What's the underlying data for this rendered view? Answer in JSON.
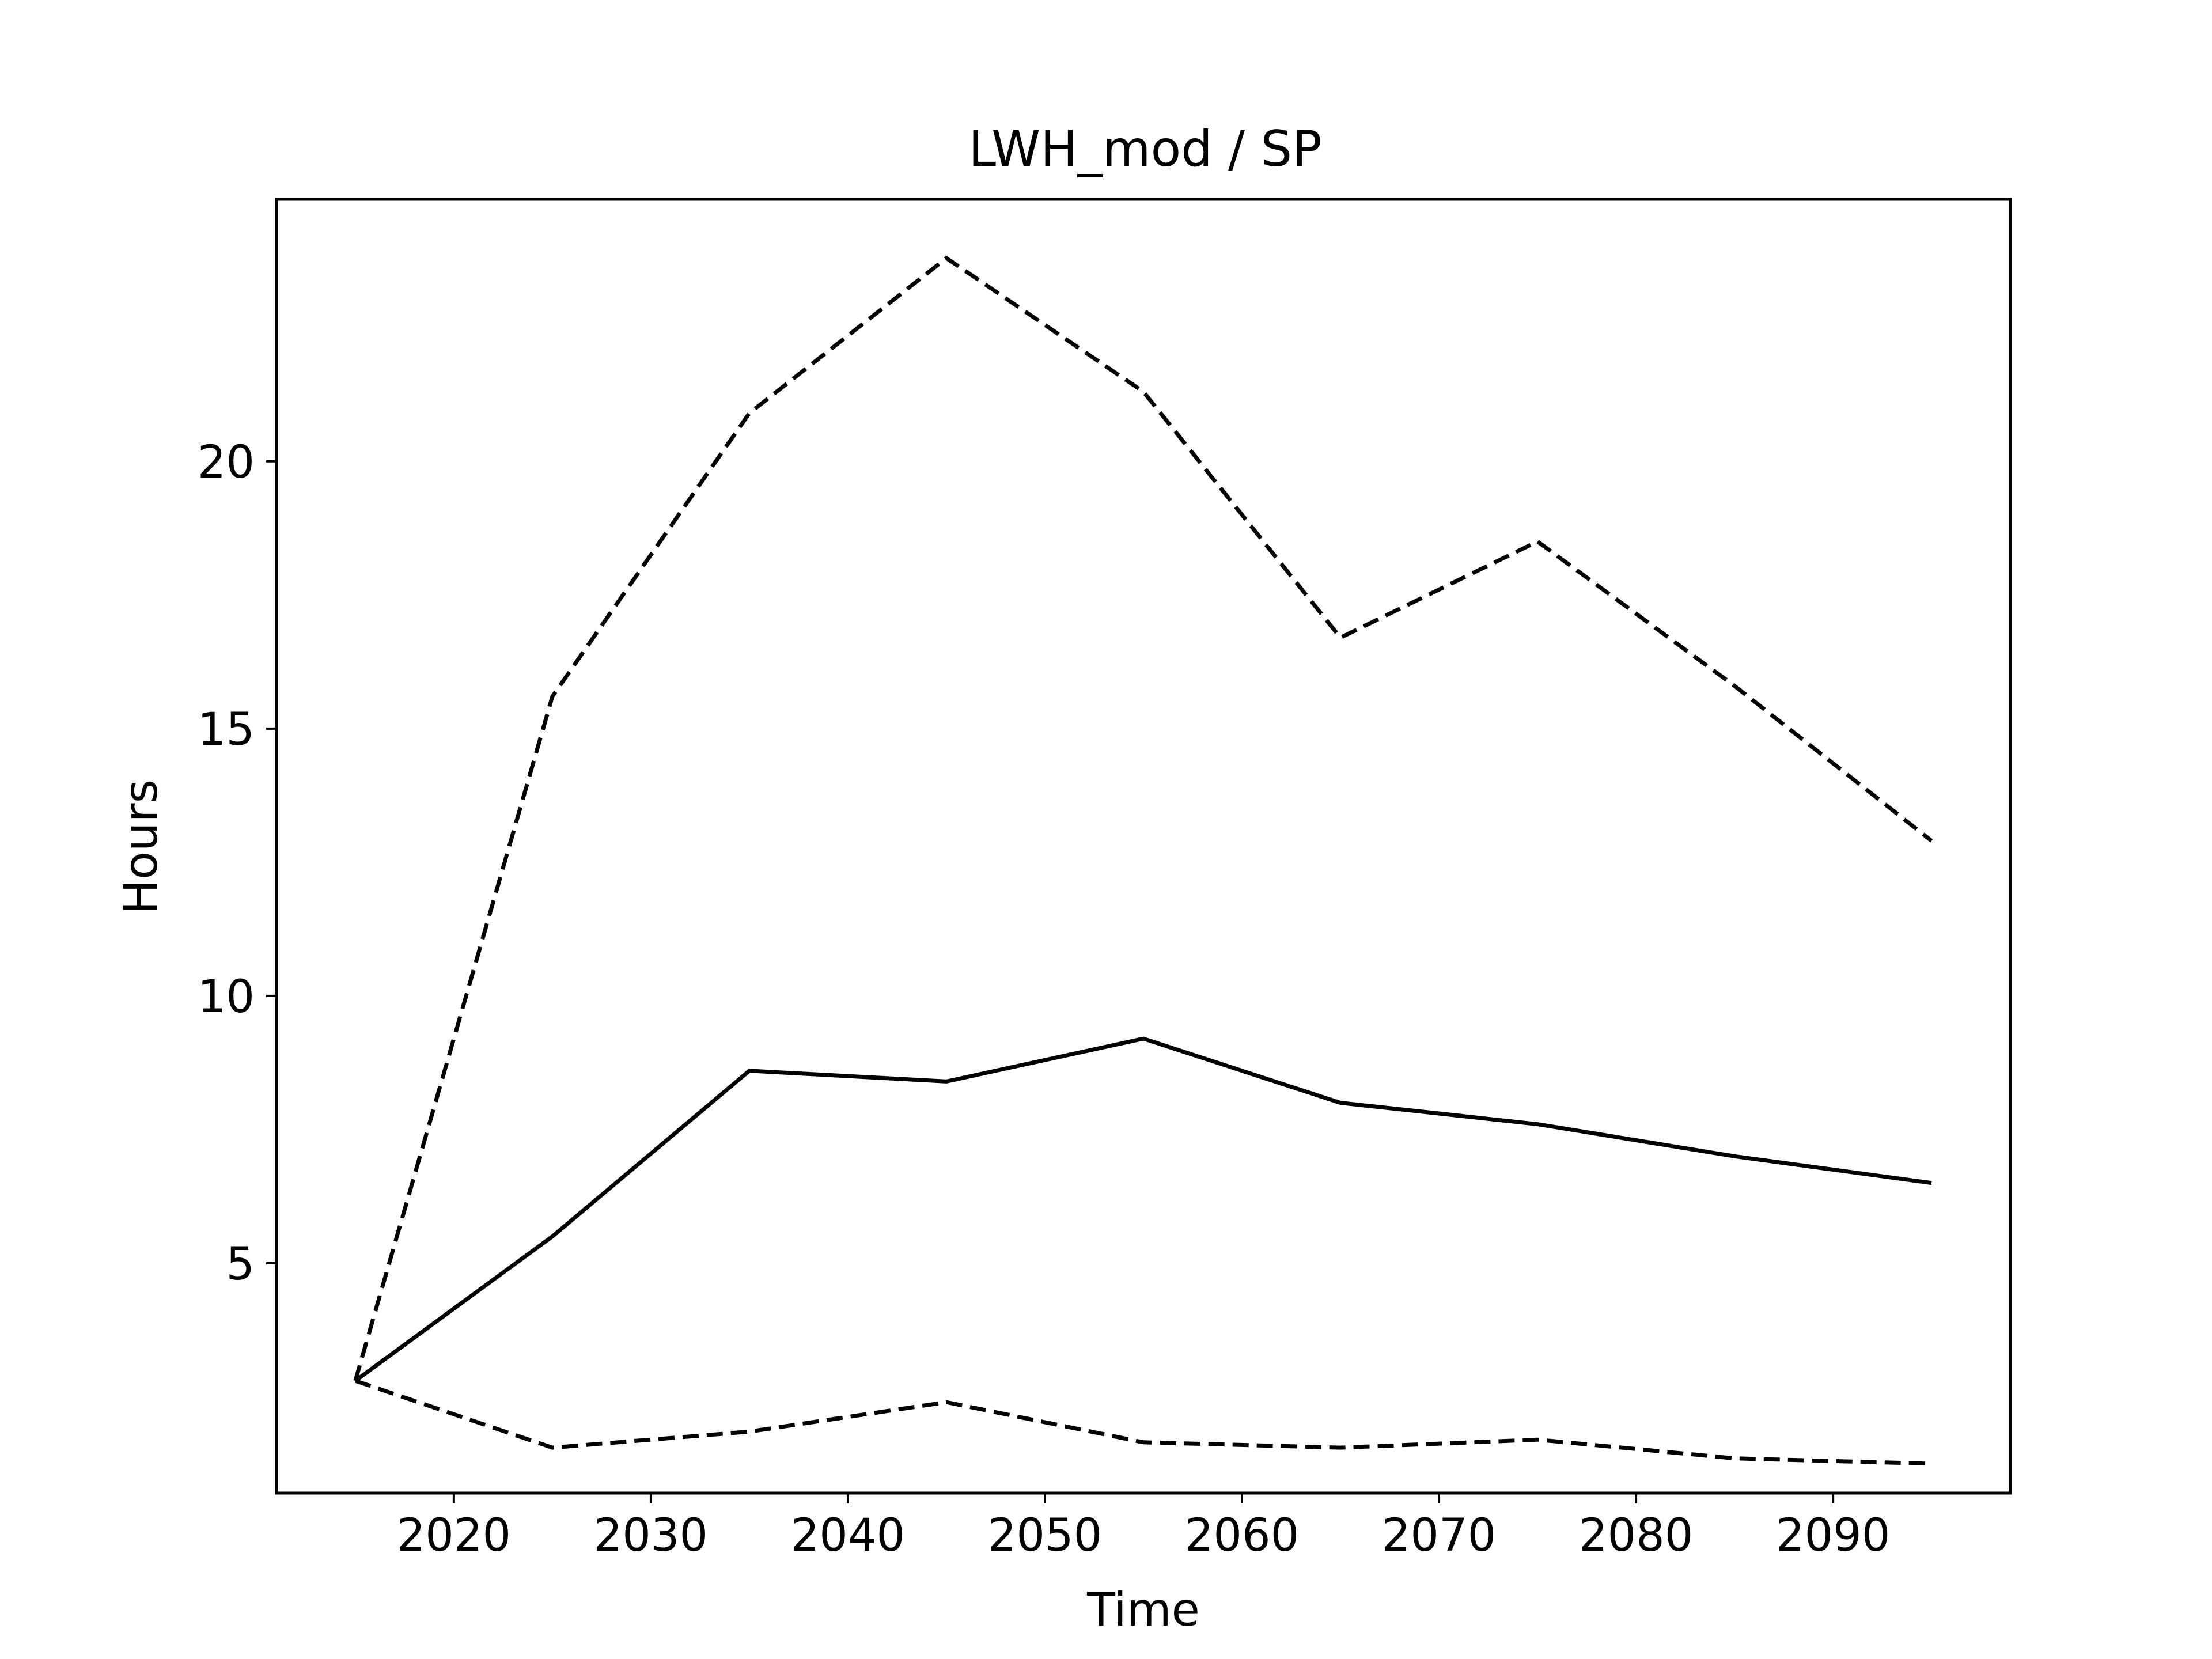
{
  "chart_data": {
    "type": "line",
    "title": "LWH_mod / SP",
    "xlabel": "Time",
    "ylabel": "Hours",
    "xlim": [
      2011,
      2099
    ],
    "ylim": [
      0.7,
      24.9
    ],
    "xticks": [
      2020,
      2030,
      2040,
      2050,
      2060,
      2070,
      2080,
      2090
    ],
    "yticks": [
      5,
      10,
      15,
      20
    ],
    "grid": false,
    "legend": "none",
    "x": [
      2015,
      2025,
      2035,
      2045,
      2055,
      2065,
      2075,
      2085,
      2095
    ],
    "series": [
      {
        "style": "dashed",
        "color": "#000000",
        "values": [
          2.8,
          15.6,
          20.9,
          23.8,
          21.3,
          16.7,
          18.5,
          15.8,
          12.9
        ]
      },
      {
        "style": "solid",
        "color": "#000000",
        "values": [
          2.8,
          5.5,
          8.6,
          8.4,
          9.2,
          8.0,
          7.6,
          7.0,
          6.5
        ]
      },
      {
        "style": "dashed",
        "color": "#000000",
        "values": [
          2.8,
          1.55,
          1.85,
          2.4,
          1.65,
          1.55,
          1.7,
          1.35,
          1.25
        ]
      }
    ]
  }
}
